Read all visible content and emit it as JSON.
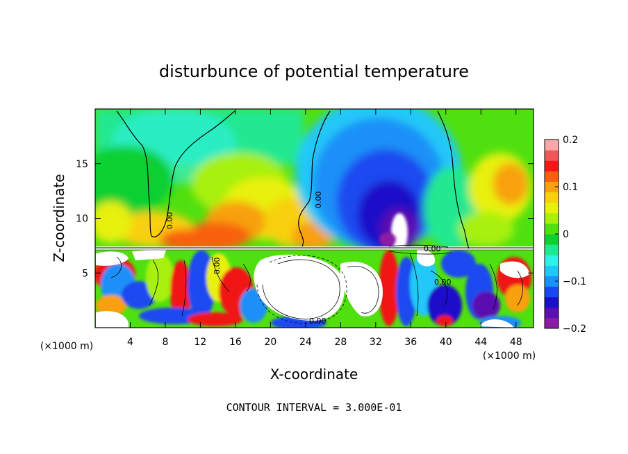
{
  "chart_data": {
    "type": "heatmap",
    "title": "disturbunce of potential temperature",
    "xlabel": "X-coordinate",
    "ylabel": "Z-coordinate",
    "x_unit_left": "(×1000 m)",
    "x_unit_right": "(×1000 m)",
    "xlim": [
      0,
      50
    ],
    "ylim": [
      0,
      20
    ],
    "x_ticks": [
      4,
      8,
      12,
      16,
      20,
      24,
      28,
      32,
      36,
      40,
      44,
      48
    ],
    "y_ticks": [
      5,
      10,
      15
    ],
    "colorbar": {
      "range": [
        -0.2,
        0.2
      ],
      "tick_values": [
        0.2,
        0.1,
        0,
        -0.1,
        -0.2
      ],
      "tick_labels": [
        "0.2",
        "0.1",
        "0",
        "−0.1",
        "−0.2"
      ],
      "colors": [
        "#8c1ba6",
        "#5a0fb0",
        "#1a10c8",
        "#1a48f0",
        "#1a90f8",
        "#20c8f8",
        "#30f0e8",
        "#20e890",
        "#10d030",
        "#50e010",
        "#a8f010",
        "#e8f010",
        "#f8d010",
        "#f8a010",
        "#f86010",
        "#f01818",
        "#f05858",
        "#f8a8a8"
      ]
    },
    "contour_interval_text": "CONTOUR INTERVAL = 3.000E-01",
    "contour_labels": [
      "0.00",
      "0.00",
      "0.00",
      "0.00",
      "0.00",
      "0.00"
    ],
    "grid": false
  }
}
